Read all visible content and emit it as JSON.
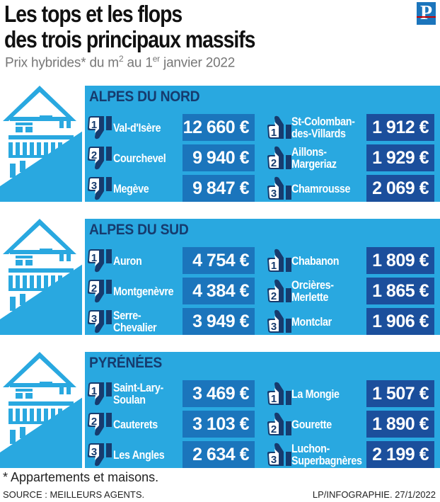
{
  "title_line1": "Les tops et les flops",
  "title_line2": "des trois principaux massifs",
  "subtitle": {
    "part1": "Prix hybrides* du m",
    "sup1": "2",
    "part2": " au 1",
    "sup2": "er",
    "part3": " janvier 2022"
  },
  "logo": "P",
  "footnote": "* Appartements et maisons.",
  "source": "SOURCE : MEILLEURS AGENTS.",
  "credit": "LP/INFOGRAPHIE.  27/1/2022",
  "colors": {
    "band": "#29a8e0",
    "top_price_box": "#1b75bc",
    "flop_price_box": "#1b4f9c",
    "section_title": "#163b6e",
    "house": "#29a8e0"
  },
  "icons": {
    "top": "thumbs-down-icon",
    "flop": "thumbs-up-icon"
  },
  "chart_data": {
    "type": "table",
    "title": "Les tops et les flops des trois principaux massifs",
    "subtitle": "Prix hybrides* du m2 au 1er janvier 2022",
    "unit": "€",
    "columns": [
      "Tops",
      "Flops"
    ],
    "massifs": [
      {
        "name": "ALPES DU NORD",
        "tops": [
          {
            "rank": "1",
            "place": "Val-d'Isère",
            "value": 12660,
            "label": "12 660 €"
          },
          {
            "rank": "2",
            "place": "Courchevel",
            "value": 9940,
            "label": "9 940 €"
          },
          {
            "rank": "3",
            "place": "Megève",
            "value": 9847,
            "label": "9 847 €"
          }
        ],
        "flops": [
          {
            "rank": "1",
            "place": "St-Colomban-\ndes-Villards",
            "value": 1912,
            "label": "1 912 €"
          },
          {
            "rank": "2",
            "place": "Aillons-\nMargeriaz",
            "value": 1929,
            "label": "1 929 €"
          },
          {
            "rank": "3",
            "place": "Chamrousse",
            "value": 2069,
            "label": "2 069 €"
          }
        ]
      },
      {
        "name": "ALPES DU SUD",
        "tops": [
          {
            "rank": "1",
            "place": "Auron",
            "value": 4754,
            "label": "4 754 €"
          },
          {
            "rank": "2",
            "place": "Montgenèvre",
            "value": 4384,
            "label": "4 384 €"
          },
          {
            "rank": "3",
            "place": "Serre-\nChevalier",
            "value": 3949,
            "label": "3 949 €"
          }
        ],
        "flops": [
          {
            "rank": "1",
            "place": "Chabanon",
            "value": 1809,
            "label": "1 809 €"
          },
          {
            "rank": "2",
            "place": "Orcières-\nMerlette",
            "value": 1865,
            "label": "1 865 €"
          },
          {
            "rank": "3",
            "place": "Montclar",
            "value": 1906,
            "label": "1 906 €"
          }
        ]
      },
      {
        "name": "PYRÉNÉES",
        "tops": [
          {
            "rank": "1",
            "place": "Saint-Lary-\nSoulan",
            "value": 3469,
            "label": "3 469 €"
          },
          {
            "rank": "2",
            "place": "Cauterets",
            "value": 3103,
            "label": "3 103 €"
          },
          {
            "rank": "3",
            "place": "Les Angles",
            "value": 2634,
            "label": "2 634 €"
          }
        ],
        "flops": [
          {
            "rank": "1",
            "place": "La Mongie",
            "value": 1507,
            "label": "1 507 €"
          },
          {
            "rank": "2",
            "place": "Gourette",
            "value": 1890,
            "label": "1 890 €"
          },
          {
            "rank": "3",
            "place": "Luchon-\nSuperbagnères",
            "value": 2199,
            "label": "2 199 €"
          }
        ]
      }
    ]
  }
}
